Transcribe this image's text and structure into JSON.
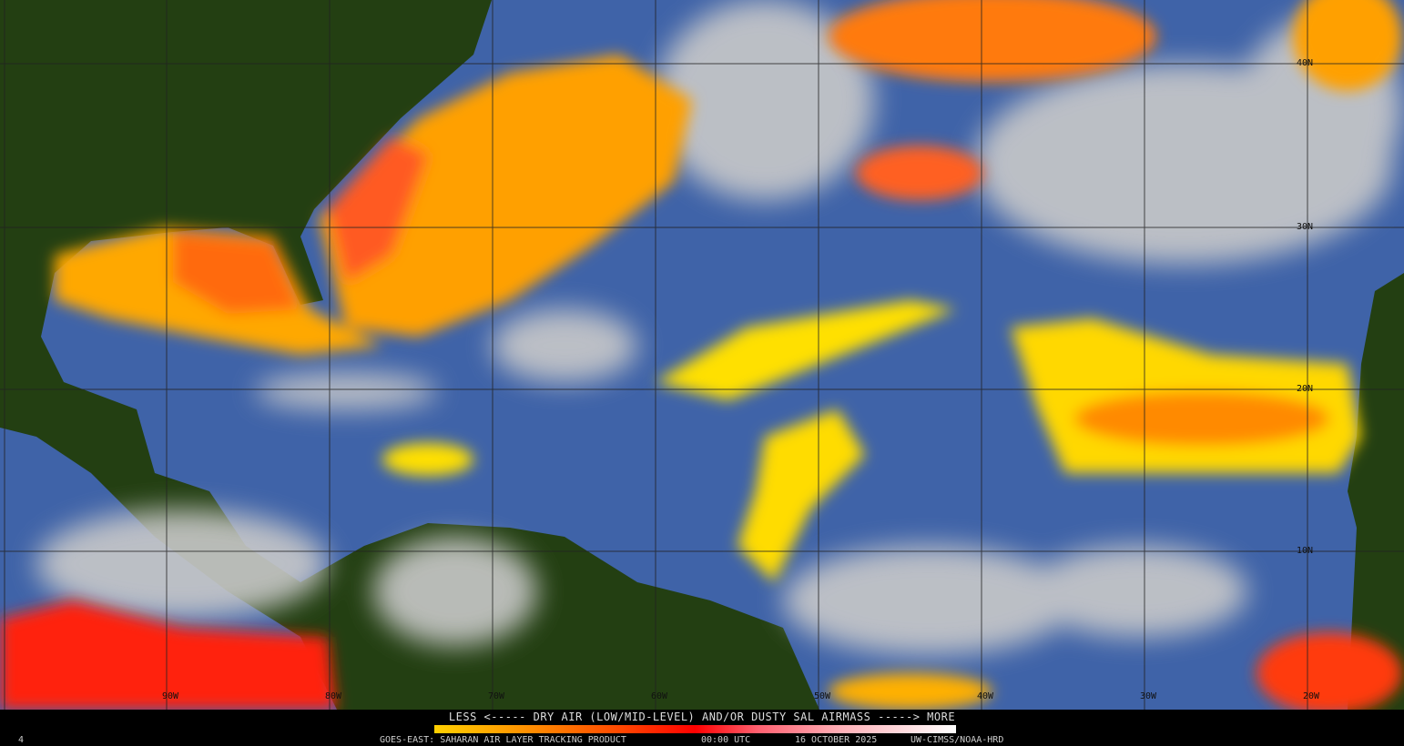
{
  "map": {
    "product": "GOES-EAST: SAHARAN AIR LAYER TRACKING PRODUCT",
    "time": "00:00 UTC",
    "date": "16 OCTOBER 2025",
    "credit": "UW-CIMSS/NOAA-HRD",
    "frame_index": "4",
    "legend_title": "LESS <----- DRY AIR (LOW/MID-LEVEL) AND/OR DUSTY SAL AIRMASS -----> MORE",
    "legend_colors": [
      "#ffd000",
      "#ff9a00",
      "#ff0000",
      "#ffb0b8",
      "#ffffff"
    ],
    "longitude_labels": [
      "90W",
      "80W",
      "70W",
      "60W",
      "50W",
      "40W",
      "30W",
      "20W"
    ],
    "latitude_labels": [
      "40N",
      "30N",
      "20N",
      "10N"
    ],
    "colors": {
      "ocean": "#3f63a8",
      "land": "#1f3a10",
      "cloud": "#c8c8c8",
      "sal_low": "#ffd800",
      "sal_mid": "#ff8000",
      "sal_high": "#ff1a1a"
    }
  }
}
